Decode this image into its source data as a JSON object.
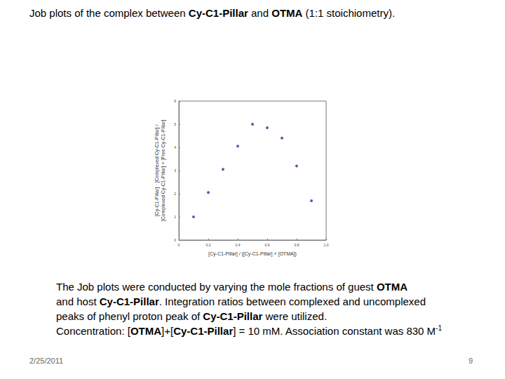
{
  "header": {
    "title": [
      {
        "text": "Job plots of the complex between "
      },
      {
        "text": "Cy-C1-Pillar",
        "bold": true
      },
      {
        "text": " and "
      },
      {
        "text": "OTMA",
        "bold": true
      },
      {
        "text": " (1:1 stoichiometry)."
      }
    ]
  },
  "chart_data": {
    "type": "scatter",
    "x": [
      0.1,
      0.2,
      0.3,
      0.4,
      0.5,
      0.6,
      0.7,
      0.8,
      0.9
    ],
    "values": [
      1.0,
      2.05,
      3.05,
      4.05,
      5.0,
      4.85,
      4.4,
      3.2,
      1.7
    ],
    "color": "#1f3f8f",
    "marker": "circle",
    "xlabel": "[Cy-C1-Pillar] / ([Cy-C1-Pillar] + [OTMA])",
    "ylabel": [
      "[Cy-C1-Pillar] · [Complexed Cy-C1-Pillar] /",
      "[Complexed Cy-C1-Pillar] + [Free Cy-C1-Pillar]"
    ],
    "xlim": [
      0,
      1
    ],
    "xticks": [
      0,
      0.2,
      0.4,
      0.6,
      0.8,
      {
        "value": 1,
        "label": "1.0"
      }
    ],
    "ylim": [
      0,
      6
    ],
    "yticks": [
      0,
      1,
      2,
      3,
      4,
      5,
      6
    ],
    "grid": false
  },
  "caption": [
    [
      {
        "text": "The Job plots were conducted by varying the mole fractions of guest "
      },
      {
        "text": "OTMA",
        "bold": true
      }
    ],
    [
      {
        "text": "and host "
      },
      {
        "text": "Cy-C1-Pillar",
        "bold": true
      },
      {
        "text": ". Integration ratios between complexed and uncomplexed"
      }
    ],
    [
      {
        "text": "peaks of phenyl proton peak of "
      },
      {
        "text": "Cy-C1-Pillar",
        "bold": true
      },
      {
        "text": " were utilized."
      }
    ],
    [
      {
        "text": "Concentration: ["
      },
      {
        "text": "OTMA",
        "bold": true
      },
      {
        "text": "]+["
      },
      {
        "text": "Cy-C1-Pillar",
        "bold": true
      },
      {
        "text": "] = 10 m"
      },
      {
        "text": "M. Association constant was 830 M"
      },
      {
        "text": "-1",
        "sup": true
      }
    ]
  ],
  "footer": {
    "date": "2/25/2011",
    "page": "9"
  }
}
